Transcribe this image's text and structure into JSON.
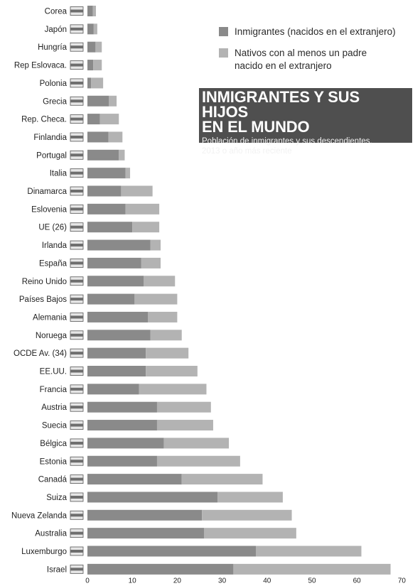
{
  "chart_data": {
    "type": "bar",
    "orientation": "horizontal",
    "stacked": true,
    "title": "INMIGRANTES Y SUS HIJOS\nEN EL MUNDO",
    "subtitle": "Población de inmigrantes y sus descendientes,\n2013 o año más reciente",
    "xlim": [
      0,
      70
    ],
    "xticks": [
      0,
      10,
      20,
      30,
      40,
      50,
      60,
      70
    ],
    "grid": false,
    "legend_position": "top-right",
    "categories": [
      "Corea",
      "Japón",
      "Hungría",
      "Rep Eslovaca.",
      "Polonia",
      "Grecia",
      "Rep. Checa.",
      "Finlandia",
      "Portugal",
      "Italia",
      "Dinamarca",
      "Eslovenia",
      "UE (26)",
      "Irlanda",
      "España",
      "Reino Unido",
      "Países Bajos",
      "Alemania",
      "Noruega",
      "OCDE Av. (34)",
      "EE.UU.",
      "Francia",
      "Austria",
      "Suecia",
      "Bélgica",
      "Estonia",
      "Canadá",
      "Suiza",
      "Nueva Zelanda",
      "Australia",
      "Luxemburgo",
      "Israel"
    ],
    "series": [
      {
        "name": "Inmigrantes (nacidos en el extranjero)",
        "color": "#8a8a8a",
        "values": [
          1.2,
          1.4,
          1.8,
          1.3,
          0.8,
          4.8,
          2.8,
          4.7,
          7.0,
          8.5,
          7.5,
          8.5,
          10.0,
          14.0,
          12.0,
          12.5,
          10.5,
          13.5,
          14.0,
          13.0,
          13.0,
          11.5,
          15.5,
          15.5,
          17.0,
          15.5,
          21.0,
          29.0,
          25.5,
          26.0,
          37.5,
          32.5
        ]
      },
      {
        "name": "Nativos con al menos un padre\nnacido en el extranjero",
        "color": "#b3b3b3",
        "values": [
          0.7,
          0.8,
          1.4,
          1.9,
          2.7,
          1.7,
          4.2,
          3.1,
          1.3,
          1.0,
          7.0,
          7.5,
          6.0,
          2.3,
          4.3,
          7.0,
          9.5,
          6.5,
          7.0,
          9.5,
          11.5,
          15.0,
          12.0,
          12.5,
          14.5,
          18.5,
          18.0,
          14.5,
          20.0,
          20.5,
          23.5,
          35.0
        ]
      }
    ]
  }
}
